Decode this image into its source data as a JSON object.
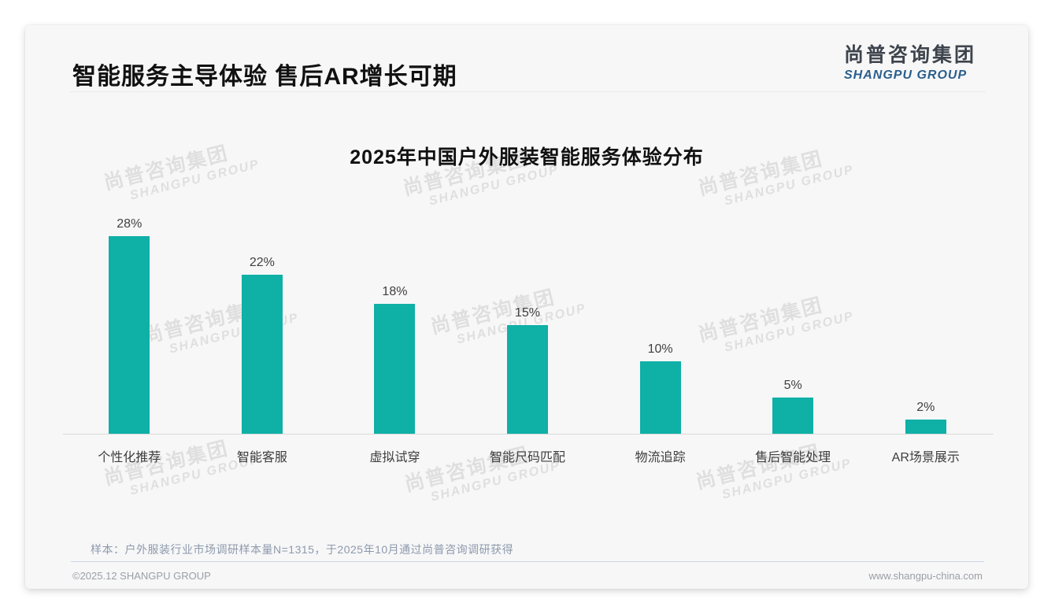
{
  "page": {
    "title": "智能服务主导体验 售后AR增长可期"
  },
  "logo": {
    "cn": "尚普咨询集团",
    "en": "SHANGPU GROUP"
  },
  "watermark": {
    "line1": "尚普咨询集团",
    "line2": "SHANGPU GROUP"
  },
  "chart_data": {
    "type": "bar",
    "title": "2025年中国户外服装智能服务体验分布",
    "categories": [
      "个性化推荐",
      "智能客服",
      "虚拟试穿",
      "智能尺码匹配",
      "物流追踪",
      "售后智能处理",
      "AR场景展示"
    ],
    "values": [
      28,
      22,
      18,
      15,
      10,
      5,
      2
    ],
    "value_labels": [
      "28%",
      "22%",
      "18%",
      "15%",
      "10%",
      "5%",
      "2%"
    ],
    "bar_color": "#0FB0A6",
    "ylim": [
      0,
      30
    ],
    "xlabel": "",
    "ylabel": "",
    "grid": false,
    "legend": false
  },
  "footnote": "样本：户外服装行业市场调研样本量N=1315，于2025年10月通过尚普咨询调研获得",
  "footer": {
    "copyright": "©2025.12 SHANGPU GROUP",
    "website": "www.shangpu-china.com"
  }
}
